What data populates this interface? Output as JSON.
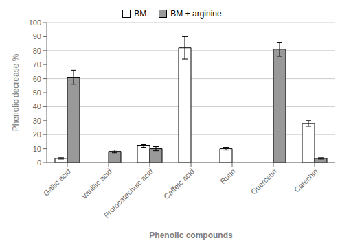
{
  "chart_data": {
    "type": "bar",
    "xlabel": "Phenolic compounds",
    "ylabel": "Phenolic decrease %",
    "categories": [
      "Gallic acid",
      "Vanillic acid",
      "Protocatechuic acid",
      "Caffeic acid",
      "Rutin",
      "Quercetin",
      "Catechin"
    ],
    "series": [
      {
        "name": "BM",
        "color": "#ffffff",
        "values": [
          3,
          0,
          12,
          82,
          10,
          0,
          28
        ],
        "errors": [
          0.5,
          0,
          1.0,
          8.0,
          1.0,
          0,
          2.0
        ]
      },
      {
        "name": "BM + arginine",
        "color": "#999999",
        "values": [
          61,
          8,
          10,
          0,
          0,
          81,
          3
        ],
        "errors": [
          5.0,
          1.0,
          1.5,
          0,
          0,
          5.0,
          0.5
        ]
      }
    ],
    "ylim": [
      0,
      100
    ],
    "yticks": [
      0,
      10,
      20,
      30,
      40,
      50,
      60,
      70,
      80,
      90,
      100
    ],
    "grid": true,
    "legend": "top"
  }
}
